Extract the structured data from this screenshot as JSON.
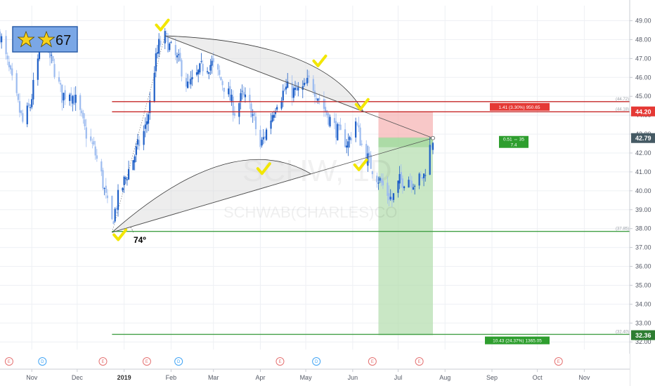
{
  "chart_data": {
    "type": "candlestick",
    "symbol": "SCHW",
    "watermark_name": "SCHWAB(CHARLES)CO",
    "watermark_symbol": "SCHW, 1D",
    "y_range": [
      31.6,
      49.8
    ],
    "y_ticks": [
      "49.00",
      "48.00",
      "47.00",
      "46.00",
      "45.00",
      "44.00",
      "43.00",
      "42.00",
      "41.00",
      "40.00",
      "39.00",
      "38.00",
      "37.00",
      "36.00",
      "35.00",
      "34.00",
      "33.00",
      "32.00"
    ],
    "x_ticks": [
      {
        "label": "Nov",
        "date": "2018-11-01"
      },
      {
        "label": "Dec",
        "date": "2018-12-01"
      },
      {
        "label": "2019",
        "date": "2019-01-01",
        "bold": true
      },
      {
        "label": "Feb",
        "date": "2019-02-01"
      },
      {
        "label": "Mar",
        "date": "2019-03-01"
      },
      {
        "label": "Apr",
        "date": "2019-04-01"
      },
      {
        "label": "May",
        "date": "2019-05-01"
      },
      {
        "label": "Jun",
        "date": "2019-06-01"
      },
      {
        "label": "Jul",
        "date": "2019-07-01"
      },
      {
        "label": "Aug",
        "date": "2019-08-01"
      },
      {
        "label": "Sep",
        "date": "2019-09-01"
      },
      {
        "label": "Oct",
        "date": "2019-10-01"
      },
      {
        "label": "Nov",
        "date": "2019-11-01"
      }
    ],
    "x_range": [
      "2018-10-11",
      "2019-12-01"
    ],
    "price_path": [
      [
        "2018-10-11",
        48.3
      ],
      [
        "2018-10-15",
        47.0
      ],
      [
        "2018-10-20",
        45.4
      ],
      [
        "2018-10-26",
        43.6
      ],
      [
        "2018-10-31",
        44.5
      ],
      [
        "2018-11-04",
        46.5
      ],
      [
        "2018-11-08",
        48.0
      ],
      [
        "2018-11-12",
        47.3
      ],
      [
        "2018-11-16",
        46.4
      ],
      [
        "2018-11-21",
        45.0
      ],
      [
        "2018-11-26",
        45.3
      ],
      [
        "2018-12-01",
        44.6
      ],
      [
        "2018-12-06",
        43.2
      ],
      [
        "2018-12-12",
        42.2
      ],
      [
        "2018-12-17",
        40.8
      ],
      [
        "2018-12-21",
        39.2
      ],
      [
        "2018-12-24",
        38.3
      ],
      [
        "2018-12-28",
        39.6
      ],
      [
        "2019-01-03",
        40.9
      ],
      [
        "2019-01-10",
        42.3
      ],
      [
        "2019-01-15",
        43.3
      ],
      [
        "2019-01-18",
        44.6
      ],
      [
        "2019-01-21",
        46.5
      ],
      [
        "2019-01-24",
        47.7
      ],
      [
        "2019-01-28",
        48.1
      ],
      [
        "2019-02-02",
        47.3
      ],
      [
        "2019-02-07",
        46.7
      ],
      [
        "2019-02-12",
        45.5
      ],
      [
        "2019-02-16",
        45.8
      ],
      [
        "2019-02-22",
        46.6
      ],
      [
        "2019-02-28",
        46.7
      ],
      [
        "2019-03-05",
        46.0
      ],
      [
        "2019-03-10",
        45.3
      ],
      [
        "2019-03-15",
        44.2
      ],
      [
        "2019-03-20",
        45.0
      ],
      [
        "2019-03-26",
        44.3
      ],
      [
        "2019-04-01",
        42.3
      ],
      [
        "2019-04-06",
        43.4
      ],
      [
        "2019-04-12",
        44.8
      ],
      [
        "2019-04-18",
        45.4
      ],
      [
        "2019-04-24",
        45.2
      ],
      [
        "2019-04-30",
        45.4
      ],
      [
        "2019-05-04",
        45.9
      ],
      [
        "2019-05-08",
        45.2
      ],
      [
        "2019-05-13",
        44.4
      ],
      [
        "2019-05-18",
        43.6
      ],
      [
        "2019-05-23",
        43.0
      ],
      [
        "2019-05-29",
        42.5
      ],
      [
        "2019-06-03",
        43.7
      ],
      [
        "2019-06-07",
        42.4
      ],
      [
        "2019-06-12",
        41.5
      ],
      [
        "2019-06-17",
        40.8
      ],
      [
        "2019-06-22",
        40.1
      ],
      [
        "2019-06-27",
        39.5
      ],
      [
        "2019-07-02",
        40.5
      ],
      [
        "2019-07-08",
        40.7
      ],
      [
        "2019-07-13",
        40.4
      ],
      [
        "2019-07-18",
        40.8
      ],
      [
        "2019-07-21",
        42.0
      ],
      [
        "2019-07-24",
        42.8
      ]
    ],
    "horizontal_levels": [
      {
        "name": "resistance-upper",
        "price": 44.72,
        "label": "(44.72)",
        "color": "#c62828"
      },
      {
        "name": "resistance-lower",
        "price": 44.18,
        "label": "(44.18)",
        "color": "#c62828"
      },
      {
        "name": "support",
        "price": 37.85,
        "label": "(37.85)",
        "color": "#43a047"
      },
      {
        "name": "target",
        "price": 32.4,
        "label": "(32.40)",
        "color": "#43a047"
      }
    ],
    "position": {
      "type": "short",
      "start": "2019-06-18",
      "end": "2019-07-24",
      "stop": 44.2,
      "entry": 42.79,
      "target": 32.36,
      "stop_info": "1.41 (3.30%) 950.65",
      "ratio_info_line1": "0.51 ⇔ 35",
      "ratio_info_line2": "7.4",
      "target_info": "10.43 (24.37%) 1365.05"
    },
    "price_badges": [
      {
        "price": 44.2,
        "label": "44.20",
        "color": "#e53935"
      },
      {
        "price": 42.79,
        "label": "42.79",
        "color": "#455a64"
      },
      {
        "price": 32.36,
        "label": "32.36",
        "color": "#2e7d32"
      }
    ],
    "trendlines": [
      {
        "from": [
          "2018-12-24",
          37.8
        ],
        "to": [
          "2019-07-24",
          42.79
        ]
      },
      {
        "from": [
          "2019-01-28",
          48.2
        ],
        "to": [
          "2019-07-24",
          42.79
        ]
      }
    ],
    "annotations": {
      "angle_label": "74º",
      "rating_value": "67",
      "check_marks": [
        [
          "2019-01-26",
          48.7
        ],
        [
          "2018-12-29",
          37.6
        ],
        [
          "2019-05-10",
          46.8
        ],
        [
          "2019-06-07",
          44.5
        ],
        [
          "2019-06-06",
          41.3
        ],
        [
          "2019-04-03",
          41.1
        ]
      ]
    },
    "events": [
      {
        "date": "2018-10-17",
        "letter": "E",
        "kind": "earnings"
      },
      {
        "date": "2018-11-08",
        "letter": "D",
        "kind": "dividend"
      },
      {
        "date": "2018-12-18",
        "letter": "E",
        "kind": "earnings"
      },
      {
        "date": "2019-01-16",
        "letter": "E",
        "kind": "earnings"
      },
      {
        "date": "2019-02-06",
        "letter": "D",
        "kind": "dividend"
      },
      {
        "date": "2019-04-14",
        "letter": "E",
        "kind": "earnings"
      },
      {
        "date": "2019-05-08",
        "letter": "D",
        "kind": "dividend"
      },
      {
        "date": "2019-06-14",
        "letter": "E",
        "kind": "earnings"
      },
      {
        "date": "2019-07-15",
        "letter": "E",
        "kind": "earnings"
      },
      {
        "date": "2019-10-15",
        "letter": "E",
        "kind": "earnings"
      }
    ],
    "colors": {
      "candle_up": "#1e5fc7",
      "candle_down": "#9dbcf0",
      "resistance": "#c62828",
      "support": "#43a047",
      "stop_zone": "#f5b5b5",
      "target_zone": "#b7dfb2",
      "earnings": "#e57373",
      "dividend": "#42a5f5"
    }
  }
}
